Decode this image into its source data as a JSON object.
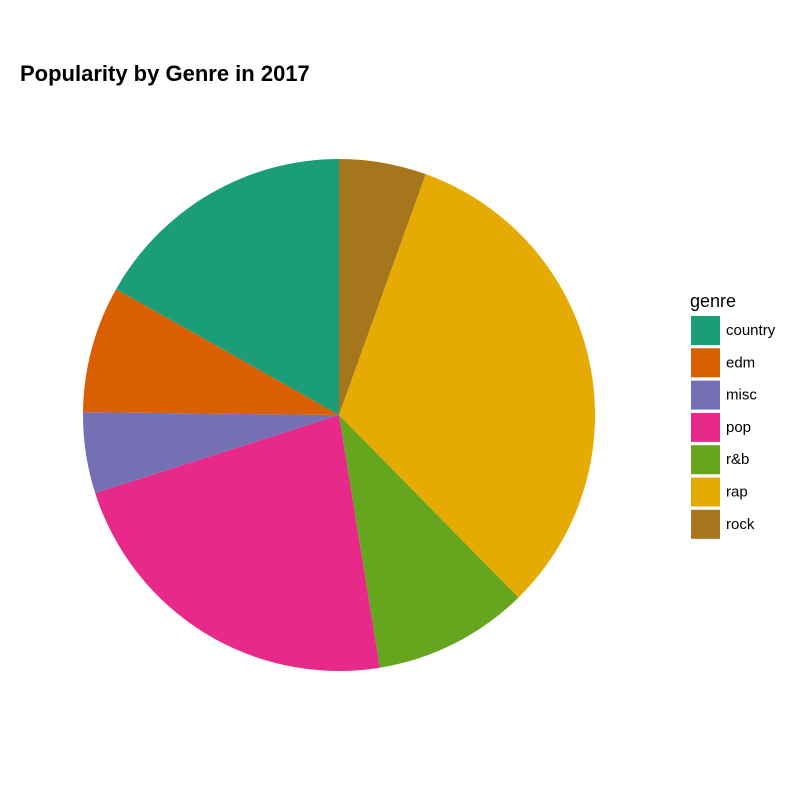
{
  "chart_data": {
    "type": "pie",
    "title": "Popularity by Genre in 2017",
    "legend_title": "genre",
    "series": [
      {
        "name": "country",
        "color": "#1b9e77",
        "values": [
          16.8
        ]
      },
      {
        "name": "edm",
        "color": "#d95f02",
        "values": [
          8.0
        ]
      },
      {
        "name": "misc",
        "color": "#7570b3",
        "values": [
          5.1
        ]
      },
      {
        "name": "pop",
        "color": "#e7298a",
        "values": [
          22.6
        ]
      },
      {
        "name": "r&b",
        "color": "#66a61e",
        "values": [
          9.8
        ]
      },
      {
        "name": "rap",
        "color": "#e6ab02",
        "values": [
          32.1
        ]
      },
      {
        "name": "rock",
        "color": "#a6761d",
        "values": [
          5.5
        ]
      }
    ],
    "legend": "right"
  }
}
